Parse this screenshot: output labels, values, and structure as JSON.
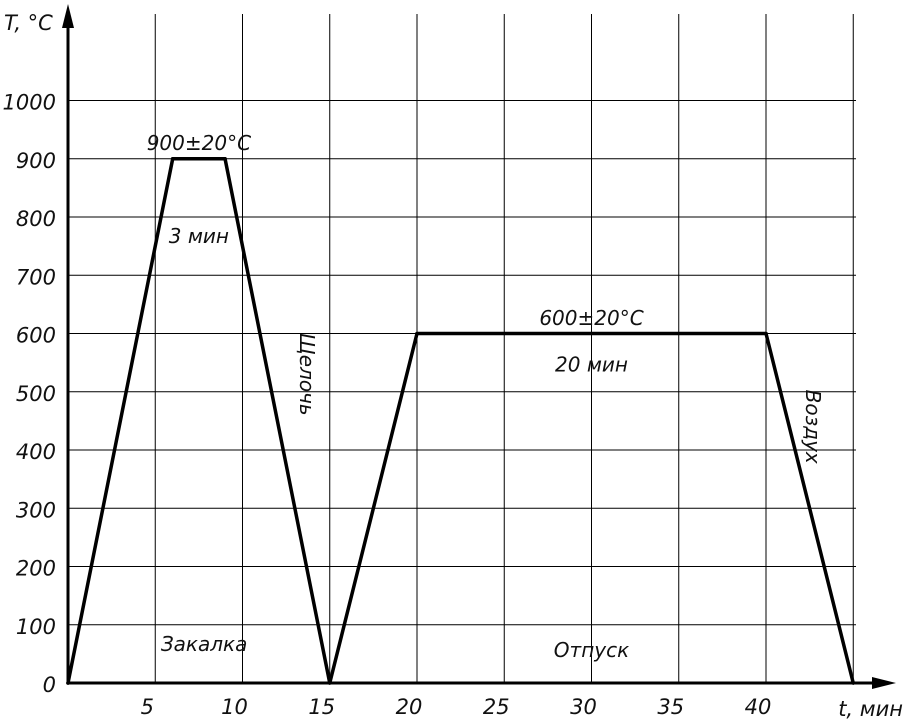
{
  "chart_data": {
    "type": "line",
    "title": "",
    "xlabel": "t, мин",
    "ylabel": "T, °C",
    "xlim": [
      0,
      47
    ],
    "ylim": [
      0,
      1100
    ],
    "x_ticks": [
      {
        "value": 5,
        "label": "5"
      },
      {
        "value": 10,
        "label": "10"
      },
      {
        "value": 15,
        "label": "15"
      },
      {
        "value": 20,
        "label": "20"
      },
      {
        "value": 25,
        "label": "25"
      },
      {
        "value": 30,
        "label": "30"
      },
      {
        "value": 35,
        "label": "35"
      },
      {
        "value": 40,
        "label": "40"
      }
    ],
    "y_ticks": [
      {
        "value": 0,
        "label": "0"
      },
      {
        "value": 100,
        "label": "100"
      },
      {
        "value": 200,
        "label": "200"
      },
      {
        "value": 300,
        "label": "300"
      },
      {
        "value": 400,
        "label": "400"
      },
      {
        "value": 500,
        "label": "500"
      },
      {
        "value": 600,
        "label": "600"
      },
      {
        "value": 700,
        "label": "700"
      },
      {
        "value": 800,
        "label": "800"
      },
      {
        "value": 900,
        "label": "900"
      },
      {
        "value": 1000,
        "label": "1000"
      }
    ],
    "grid": true,
    "grid_x": [
      0,
      5,
      10,
      15,
      20,
      25,
      30,
      35,
      40,
      45
    ],
    "grid_y": [
      100,
      200,
      300,
      400,
      500,
      600,
      700,
      800,
      900,
      1000
    ],
    "series": [
      {
        "color": "#000000",
        "points": [
          {
            "x": 0,
            "y": 0
          },
          {
            "x": 6,
            "y": 900
          },
          {
            "x": 9,
            "y": 900
          },
          {
            "x": 15,
            "y": 0
          },
          {
            "x": 20,
            "y": 600
          },
          {
            "x": 40,
            "y": 600
          },
          {
            "x": 45,
            "y": 0
          }
        ]
      }
    ],
    "annotations": [
      {
        "text": "900±20°C",
        "x": 7.5,
        "y": 915,
        "rotate": 0
      },
      {
        "text": "3 мин",
        "x": 7.5,
        "y": 755,
        "rotate": 0
      },
      {
        "text": "Щелочь",
        "x": 13.3,
        "y": 530,
        "rotate": 90
      },
      {
        "text": "600±20°C",
        "x": 30,
        "y": 615,
        "rotate": 0
      },
      {
        "text": "20 мин",
        "x": 30,
        "y": 535,
        "rotate": 0
      },
      {
        "text": "Воздух",
        "x": 42.3,
        "y": 440,
        "rotate": 90
      },
      {
        "text": "Закалка",
        "x": 7.8,
        "y": 55,
        "rotate": 0
      },
      {
        "text": "Отпуск",
        "x": 30,
        "y": 45,
        "rotate": 0
      }
    ]
  }
}
